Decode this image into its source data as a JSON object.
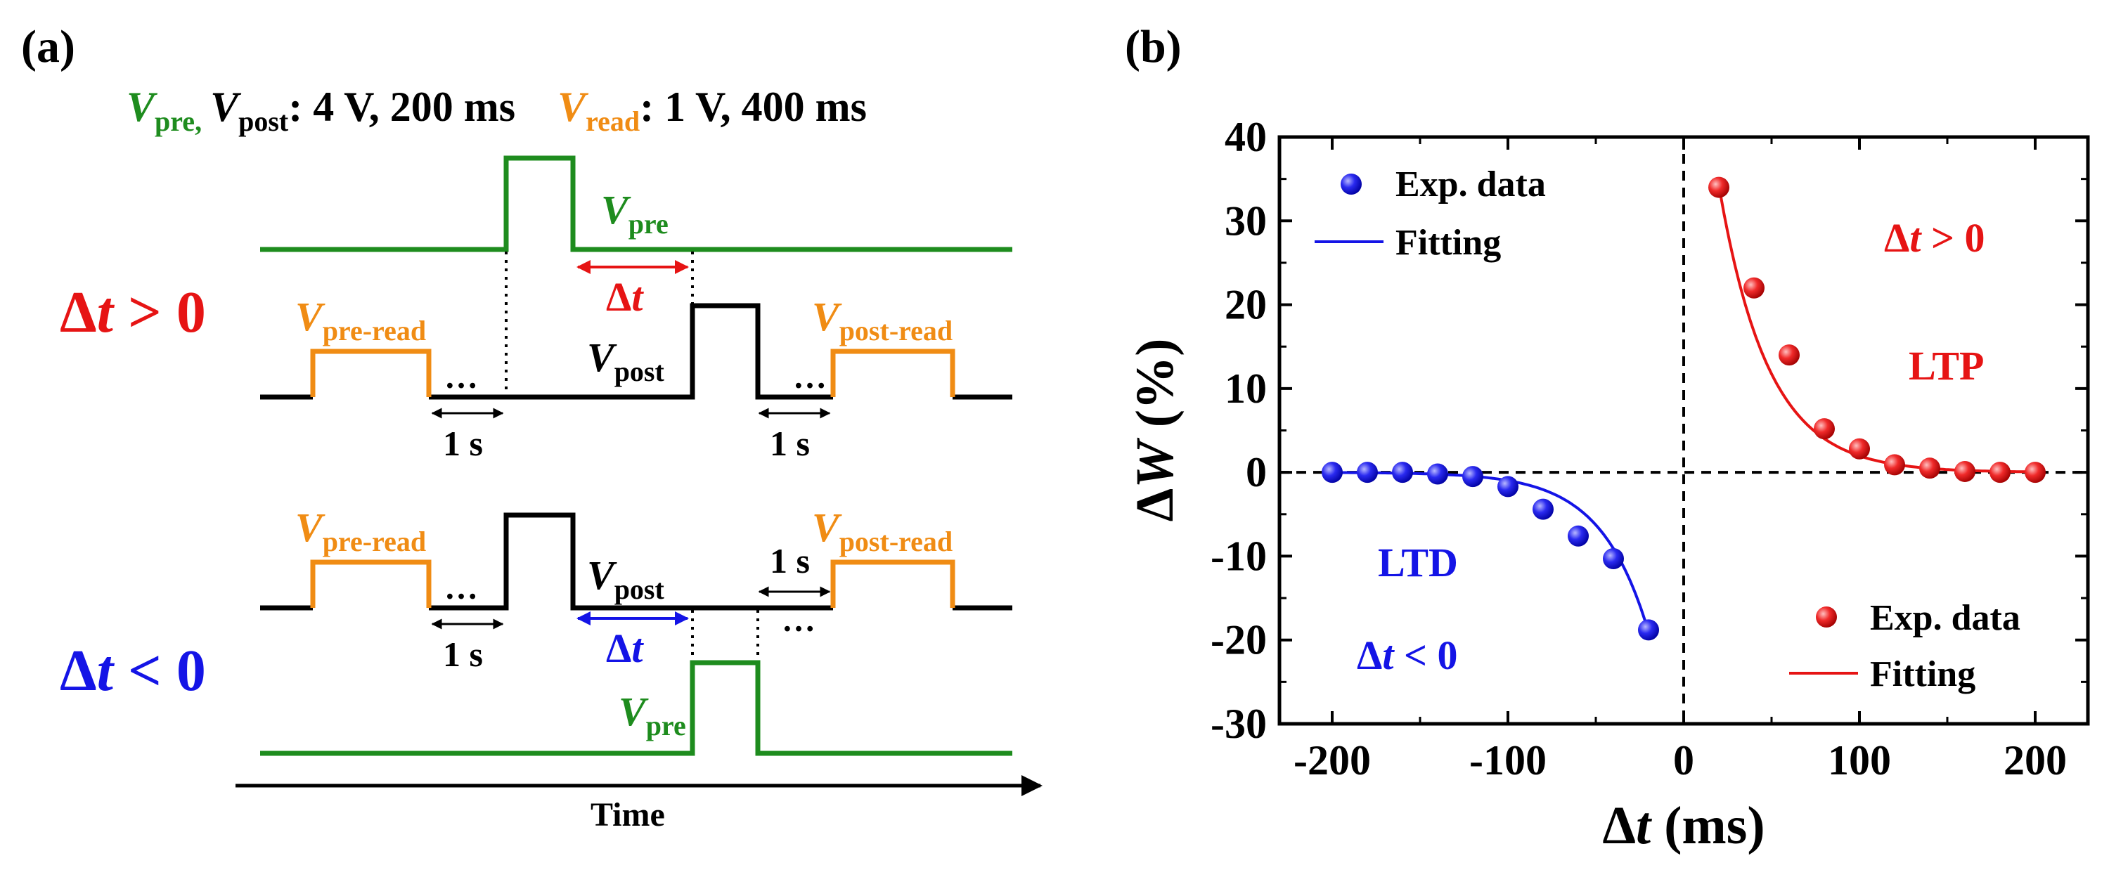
{
  "panel_a": {
    "label": "(a)",
    "legend": {
      "vpre": "V",
      "vpre_sub": "pre,",
      "vpost": "V",
      "vpost_sub": "post",
      "vpre_vpost_spec": ": 4 V, 200 ms",
      "vread": "V",
      "vread_sub": "read",
      "vread_spec": ": 1 V, 400 ms"
    },
    "case_positive": {
      "label_delta": "Δ",
      "label_t": "t",
      "label_rel": " > 0",
      "vpre_sym": "V",
      "vpre_sub": "pre",
      "dt_delta": "Δ",
      "dt_t": "t",
      "vpre_read_sym": "V",
      "vpre_read_sub": "pre-read",
      "vpost_sym": "V",
      "vpost_sub": "post",
      "vpost_read_sym": "V",
      "vpost_read_sub": "post-read",
      "dots": "…",
      "gap_label_1": "1 s",
      "gap_label_2": "1 s"
    },
    "case_negative": {
      "label_delta": "Δ",
      "label_t": "t",
      "label_rel": " < 0",
      "vpre_read_sym": "V",
      "vpre_read_sub": "pre-read",
      "vpost_sym": "V",
      "vpost_sub": "post",
      "vpost_read_sym": "V",
      "vpost_read_sub": "post-read",
      "dt_delta": "Δ",
      "dt_t": "t",
      "vpre_sym": "V",
      "vpre_sub": "pre",
      "dots": "…",
      "gap_label_1": "1 s",
      "gap_label_2": "1 s"
    },
    "time_axis_label": "Time"
  },
  "panel_b": {
    "label": "(b)"
  },
  "chart_data": {
    "type": "scatter",
    "title": "",
    "xlabel_delta": "Δ",
    "xlabel_t": "t",
    "xlabel_unit": " (ms)",
    "ylabel_delta": "Δ",
    "ylabel_w": "W",
    "ylabel_unit": " (%)",
    "xlim": [
      -230,
      230
    ],
    "ylim": [
      -30,
      40
    ],
    "xticks": [
      -200,
      -100,
      0,
      100,
      200
    ],
    "xtick_labels": [
      "-200",
      "-100",
      "0",
      "100",
      "200"
    ],
    "yticks": [
      -30,
      -20,
      -10,
      0,
      10,
      20,
      30,
      40
    ],
    "ytick_labels": [
      "-30",
      "-20",
      "-10",
      "0",
      "10",
      "20",
      "30",
      "40"
    ],
    "series": [
      {
        "name": "LTD",
        "color": "#1414e6",
        "x": [
          -200,
          -180,
          -160,
          -140,
          -120,
          -100,
          -80,
          -60,
          -40,
          -20
        ],
        "y": [
          0.0,
          0.0,
          0.0,
          -0.2,
          -0.5,
          -1.7,
          -4.4,
          -7.6,
          -10.3,
          -18.8
        ],
        "fit": {
          "A": -40.0,
          "tau": 27.0
        }
      },
      {
        "name": "LTP",
        "color": "#e61414",
        "x": [
          20,
          40,
          60,
          80,
          100,
          120,
          140,
          160,
          180,
          200
        ],
        "y": [
          34.0,
          22.0,
          14.0,
          5.2,
          2.8,
          0.9,
          0.5,
          0.1,
          0.0,
          0.0
        ],
        "fit": {
          "A": 70.0,
          "tau": 28.0
        }
      }
    ],
    "legend_ltd": {
      "points": "Exp. data",
      "line": "Fitting",
      "position": "top-left"
    },
    "legend_ltp": {
      "points": "Exp. data",
      "line": "Fitting",
      "position": "bottom-right"
    },
    "annotations": {
      "ltp_cond_delta": "Δ",
      "ltp_cond_t": "t",
      "ltp_cond_rel": " > 0",
      "ltp_label": "LTP",
      "ltd_label": "LTD",
      "ltd_cond_delta": "Δ",
      "ltd_cond_t": "t",
      "ltd_cond_rel": " < 0"
    },
    "colors": {
      "ltd": "#1414e6",
      "ltp": "#e61414"
    }
  },
  "colors": {
    "green": "#1e8c1e",
    "orange": "#f08c14",
    "black": "#000000",
    "red": "#e61414",
    "blue": "#1414e6"
  }
}
